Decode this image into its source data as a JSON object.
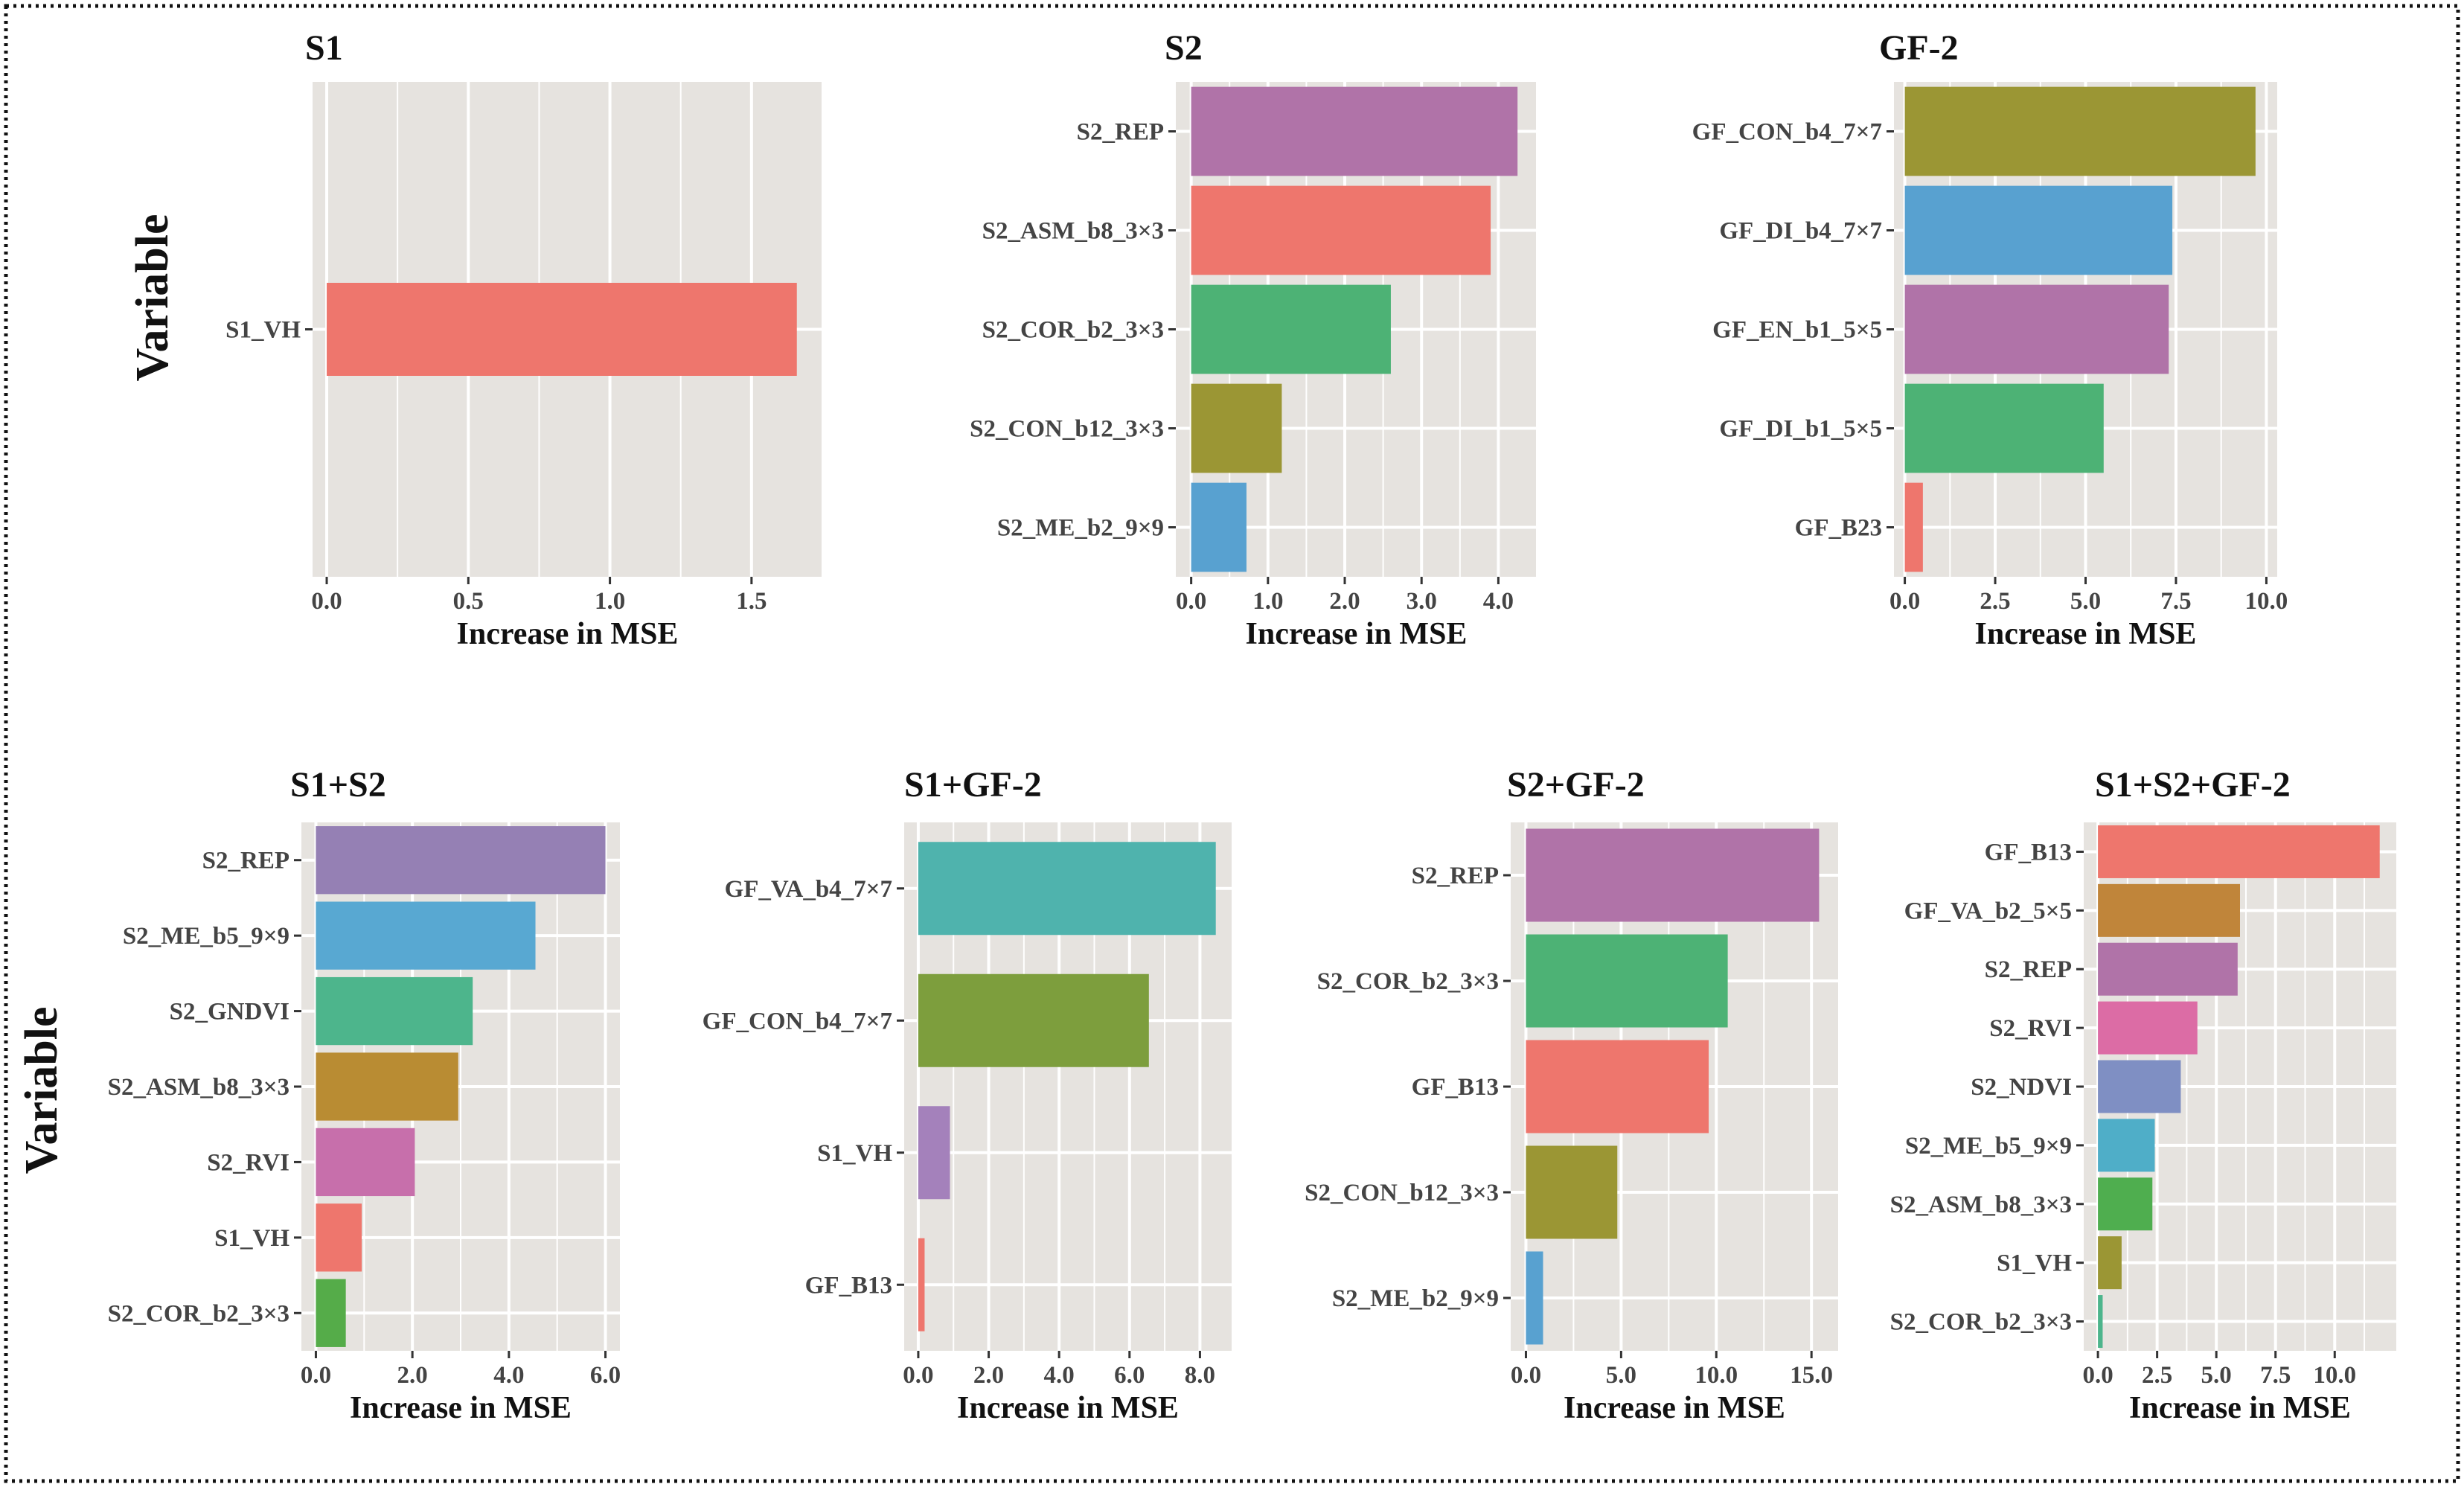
{
  "figure": {
    "row_labels": [
      "Variable",
      "Variable"
    ]
  },
  "chart_data": [
    {
      "type": "bar",
      "orientation": "horizontal",
      "title": "S1",
      "xlabel": "Increase in MSE",
      "ylabel": "Variable",
      "xlim": [
        -0.05,
        1.75
      ],
      "grid": true,
      "x_ticks": [
        0.0,
        0.5,
        1.0,
        1.5
      ],
      "x_tick_labels": [
        "0.0",
        "0.5",
        "1.0",
        "1.5"
      ],
      "categories": [
        "S1_VH"
      ],
      "values": [
        1.66
      ],
      "colors": [
        "#ee766d"
      ]
    },
    {
      "type": "bar",
      "orientation": "horizontal",
      "title": "S2",
      "xlabel": "Increase in MSE",
      "ylabel": "",
      "xlim": [
        -0.2,
        4.5
      ],
      "grid": true,
      "x_ticks": [
        0,
        1,
        2,
        3,
        4
      ],
      "x_tick_labels": [
        "0.0",
        "1.0",
        "2.0",
        "3.0",
        "4.0"
      ],
      "categories": [
        "S2_REP",
        "S2_ASM_b8_3×3",
        "S2_COR_b2_3×3",
        "S2_CON_b12_3×3",
        "S2_ME_b2_9×9"
      ],
      "values": [
        4.25,
        3.9,
        2.6,
        1.18,
        0.72
      ],
      "colors": [
        "#b073a8",
        "#ee766d",
        "#4db275",
        "#9b9634",
        "#58a1d0"
      ]
    },
    {
      "type": "bar",
      "orientation": "horizontal",
      "title": "GF-2",
      "xlabel": "Increase in MSE",
      "ylabel": "",
      "xlim": [
        -0.3,
        10.3
      ],
      "grid": true,
      "x_ticks": [
        0,
        2.5,
        5,
        7.5,
        10
      ],
      "x_tick_labels": [
        "0.0",
        "2.5",
        "5.0",
        "7.5",
        "10.0"
      ],
      "categories": [
        "GF_CON_b4_7×7",
        "GF_DI_b4_7×7",
        "GF_EN_b1_5×5",
        "GF_DI_b1_5×5",
        "GF_B23"
      ],
      "values": [
        9.7,
        7.4,
        7.3,
        5.5,
        0.5
      ],
      "colors": [
        "#9b9634",
        "#58a1d0",
        "#b073a8",
        "#4db275",
        "#ee766d"
      ]
    },
    {
      "type": "bar",
      "orientation": "horizontal",
      "title": "S1+S2",
      "xlabel": "Increase in MSE",
      "ylabel": "Variable",
      "xlim": [
        -0.3,
        6.3
      ],
      "grid": true,
      "x_ticks": [
        0,
        2,
        4,
        6
      ],
      "x_tick_labels": [
        "0.0",
        "2.0",
        "4.0",
        "6.0"
      ],
      "categories": [
        "S2_REP",
        "S2_ME_b5_9×9",
        "S2_GNDVI",
        "S2_ASM_b8_3×3",
        "S2_RVI",
        "S1_VH",
        "S2_COR_b2_3×3"
      ],
      "values": [
        6.0,
        4.55,
        3.25,
        2.95,
        2.05,
        0.95,
        0.62
      ],
      "colors": [
        "#9580b4",
        "#58a8d2",
        "#4db58c",
        "#b98c33",
        "#c76fab",
        "#ee766d",
        "#55ac49"
      ]
    },
    {
      "type": "bar",
      "orientation": "horizontal",
      "title": "S1+GF-2",
      "xlabel": "Increase in MSE",
      "ylabel": "",
      "xlim": [
        -0.4,
        8.9
      ],
      "grid": true,
      "x_ticks": [
        0,
        2,
        4,
        6,
        8
      ],
      "x_tick_labels": [
        "0.0",
        "2.0",
        "4.0",
        "6.0",
        "8.0"
      ],
      "categories": [
        "GF_VA_b4_7×7",
        "GF_CON_b4_7×7",
        "S1_VH",
        "GF_B13"
      ],
      "values": [
        8.45,
        6.55,
        0.9,
        0.18
      ],
      "colors": [
        "#4fb3ad",
        "#7d9e3d",
        "#a481bb",
        "#ee766d"
      ]
    },
    {
      "type": "bar",
      "orientation": "horizontal",
      "title": "S2+GF-2",
      "xlabel": "Increase in MSE",
      "ylabel": "",
      "xlim": [
        -0.8,
        16.4
      ],
      "grid": true,
      "x_ticks": [
        0,
        5,
        10,
        15
      ],
      "x_tick_labels": [
        "0.0",
        "5.0",
        "10.0",
        "15.0"
      ],
      "categories": [
        "S2_REP",
        "S2_COR_b2_3×3",
        "GF_B13",
        "S2_CON_b12_3×3",
        "S2_ME_b2_9×9"
      ],
      "values": [
        15.4,
        10.6,
        9.6,
        4.8,
        0.9
      ],
      "colors": [
        "#b073a8",
        "#4db275",
        "#ee766d",
        "#9b9634",
        "#58a1d0"
      ]
    },
    {
      "type": "bar",
      "orientation": "horizontal",
      "title": "S1+S2+GF-2",
      "xlabel": "Increase in MSE",
      "ylabel": "",
      "xlim": [
        -0.6,
        12.6
      ],
      "grid": true,
      "x_ticks": [
        0,
        2.5,
        5,
        7.5,
        10
      ],
      "x_tick_labels": [
        "0.0",
        "2.5",
        "5.0",
        "7.5",
        "10.0"
      ],
      "categories": [
        "GF_B13",
        "GF_VA_b2_5×5",
        "S2_REP",
        "S2_RVI",
        "S2_NDVI",
        "S2_ME_b5_9×9",
        "S2_ASM_b8_3×3",
        "S1_VH",
        "S2_COR_b2_3×3"
      ],
      "values": [
        11.9,
        6.0,
        5.9,
        4.2,
        3.5,
        2.4,
        2.3,
        1.0,
        0.2
      ],
      "colors": [
        "#ee766d",
        "#c0853a",
        "#b073a8",
        "#dc6ca5",
        "#7f8fc3",
        "#4faec8",
        "#4fae4f",
        "#9b9634",
        "#4db58c"
      ]
    }
  ]
}
